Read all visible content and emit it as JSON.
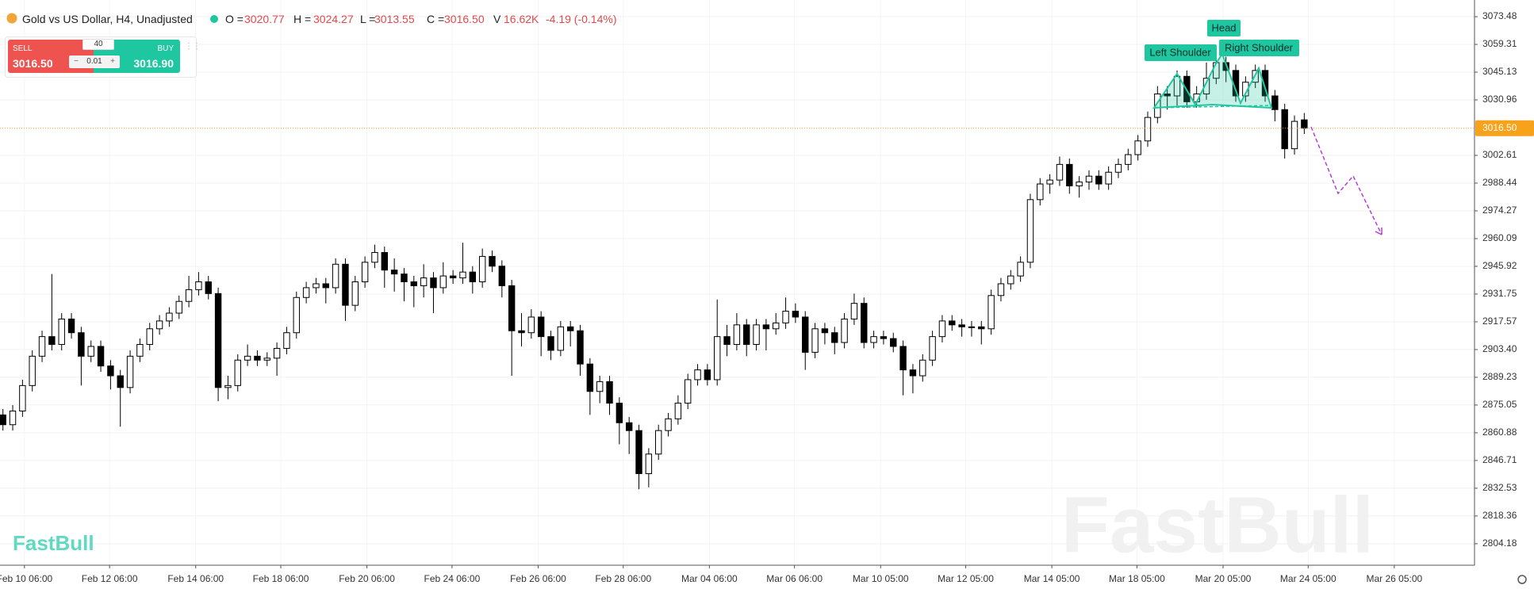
{
  "header": {
    "title": "Gold vs US Dollar, H4, Unadjusted",
    "open_label": "O =",
    "open": "3020.77",
    "high_label": "H =",
    "high": "3024.27",
    "low_label": "L =",
    "low": "3013.55",
    "close_label": "C =",
    "close": "3016.50",
    "volume_label": "V",
    "volume": "16.62K",
    "change": "-4.19 (-0.14%)"
  },
  "trade_widget": {
    "sell_label": "SELL",
    "sell_price": "3016.50",
    "buy_label": "BUY",
    "buy_price": "3016.90",
    "spread": "40",
    "minus": "−",
    "quantity": "0.01",
    "plus": "+"
  },
  "logo": "FastBull",
  "chart_data": {
    "type": "candlestick",
    "watermark": "FastBull",
    "annotations": {
      "left": "Left Shoulder",
      "head": "Head",
      "right": "Right Shoulder"
    },
    "up_color": "#ffffff",
    "down_color": "#000000",
    "edge_color": "#000000",
    "last_price": {
      "value": 3016.5,
      "label": "3016.50"
    },
    "last_price_color": "#f7a21b",
    "grid": true,
    "xlim": [
      -0.3,
      150.4
    ],
    "ylim": [
      2793.2,
      3082
    ],
    "xticks": [
      {
        "value": 2.2,
        "label": "Feb 10 06:00"
      },
      {
        "value": 10.9,
        "label": "Feb 12 06:00"
      },
      {
        "value": 19.7,
        "label": "Feb 14 06:00"
      },
      {
        "value": 28.4,
        "label": "Feb 18 06:00"
      },
      {
        "value": 37.2,
        "label": "Feb 20 06:00"
      },
      {
        "value": 45.9,
        "label": "Feb 24 06:00"
      },
      {
        "value": 54.7,
        "label": "Feb 26 06:00"
      },
      {
        "value": 63.4,
        "label": "Feb 28 06:00"
      },
      {
        "value": 72.2,
        "label": "Mar 04 06:00"
      },
      {
        "value": 80.9,
        "label": "Mar 06 06:00"
      },
      {
        "value": 89.7,
        "label": "Mar 10 05:00"
      },
      {
        "value": 98.4,
        "label": "Mar 12 05:00"
      },
      {
        "value": 107.2,
        "label": "Mar 14 05:00"
      },
      {
        "value": 115.9,
        "label": "Mar 18 05:00"
      },
      {
        "value": 124.7,
        "label": "Mar 20 05:00"
      },
      {
        "value": 133.4,
        "label": "Mar 24 05:00"
      },
      {
        "value": 142.2,
        "label": "Mar 26 05:00"
      }
    ],
    "yticks": [
      3073.48,
      3059.31,
      3045.13,
      3030.96,
      3002.61,
      2988.44,
      2974.27,
      2960.09,
      2945.92,
      2931.75,
      2917.57,
      {
        "value": 2903.4,
        "label": "2903.40"
      },
      2889.23,
      2875.05,
      2860.88,
      2846.71,
      2832.53,
      2818.36,
      2804.18
    ],
    "open": [
      2870,
      2865,
      2872,
      2885,
      2900,
      2910,
      2906,
      2919,
      2912,
      2900,
      2905,
      2895,
      2890,
      2884,
      2900,
      2906,
      2914,
      2918,
      2922,
      2928,
      2934,
      2938,
      2932,
      2884,
      2885,
      2898,
      2900,
      2898,
      2899,
      2904,
      2912,
      2930,
      2935,
      2937,
      2935,
      2947,
      2926,
      2938,
      2948,
      2953,
      2944,
      2942,
      2938,
      2936,
      2940,
      2935,
      2941,
      2940,
      2943,
      2938,
      2951,
      2946,
      2936,
      2913,
      2912,
      2920,
      2910,
      2903,
      2915,
      2913,
      2896,
      2882,
      2887,
      2876,
      2866,
      2862,
      2840,
      2850,
      2862,
      2868,
      2876,
      2888,
      2893,
      2888,
      2910,
      2906,
      2916,
      2906,
      2916,
      2914,
      2917,
      2923,
      2920,
      2902,
      2914,
      2912,
      2907,
      2919,
      2927,
      2907,
      2910,
      2909,
      2905,
      2893,
      2890,
      2898,
      2910,
      2918,
      2916,
      2915,
      2915,
      2914,
      2931,
      2937,
      2941,
      2948,
      2980,
      2988,
      2990,
      2998,
      2987,
      2989,
      2992,
      2988,
      2994,
      2998,
      3003,
      3010,
      3022,
      3034,
      3033,
      3043,
      3030,
      3034,
      3042,
      3050,
      3046,
      3033,
      3040,
      3046,
      3033,
      3026,
      3006,
      3020.77
    ],
    "high": [
      2873,
      2875,
      2888,
      2903,
      2913,
      2942,
      2922,
      2922,
      2915,
      2908,
      2908,
      2898,
      2893,
      2903,
      2909,
      2917,
      2921,
      2925,
      2931,
      2941,
      2943,
      2941,
      2935,
      2890,
      2901,
      2906,
      2903,
      2902,
      2907,
      2915,
      2933,
      2938,
      2940,
      2940,
      2950,
      2950,
      2941,
      2951,
      2957,
      2956,
      2950,
      2945,
      2941,
      2947,
      2943,
      2948,
      2944,
      2958,
      2946,
      2955,
      2954,
      2949,
      2939,
      2922,
      2924,
      2923,
      2913,
      2918,
      2918,
      2916,
      2899,
      2890,
      2890,
      2879,
      2869,
      2865,
      2853,
      2865,
      2871,
      2880,
      2891,
      2896,
      2896,
      2929,
      2916,
      2922,
      2919,
      2919,
      2919,
      2922,
      2930,
      2927,
      2923,
      2917,
      2917,
      2915,
      2922,
      2932,
      2930,
      2913,
      2913,
      2912,
      2908,
      2896,
      2901,
      2913,
      2921,
      2921,
      2919,
      2918,
      2918,
      2934,
      2940,
      2944,
      2951,
      2983,
      2991,
      2993,
      3002,
      3001,
      2992,
      2995,
      2995,
      2997,
      3001,
      3006,
      3013,
      3025,
      3038,
      3038,
      3046,
      3046,
      3038,
      3050,
      3057,
      3053,
      3049,
      3043,
      3049,
      3049,
      3036,
      3029,
      3023,
      3024.27
    ],
    "low": [
      2862,
      2862,
      2869,
      2882,
      2897,
      2903,
      2903,
      2909,
      2885,
      2897,
      2892,
      2883,
      2864,
      2881,
      2897,
      2903,
      2911,
      2915,
      2919,
      2925,
      2931,
      2929,
      2877,
      2878,
      2882,
      2895,
      2895,
      2895,
      2890,
      2901,
      2909,
      2927,
      2932,
      2927,
      2932,
      2918,
      2923,
      2935,
      2945,
      2935,
      2933,
      2928,
      2925,
      2930,
      2922,
      2932,
      2937,
      2937,
      2932,
      2935,
      2943,
      2930,
      2890,
      2905,
      2909,
      2900,
      2898,
      2900,
      2905,
      2890,
      2870,
      2876,
      2870,
      2855,
      2850,
      2832,
      2833,
      2847,
      2859,
      2865,
      2873,
      2885,
      2885,
      2885,
      2900,
      2903,
      2900,
      2903,
      2903,
      2911,
      2914,
      2917,
      2893,
      2899,
      2906,
      2901,
      2904,
      2916,
      2904,
      2904,
      2906,
      2902,
      2880,
      2881,
      2887,
      2895,
      2907,
      2913,
      2910,
      2910,
      2906,
      2911,
      2928,
      2934,
      2938,
      2945,
      2977,
      2983,
      2987,
      2983,
      2981,
      2985,
      2985,
      2985,
      2991,
      2995,
      3000,
      3007,
      3019,
      3026,
      3028,
      3027,
      3027,
      3031,
      3039,
      3040,
      3030,
      3030,
      3037,
      3030,
      3020,
      3001,
      3003,
      3013.55
    ],
    "close": [
      2865,
      2872,
      2885,
      2900,
      2910,
      2906,
      2919,
      2912,
      2900,
      2905,
      2895,
      2890,
      2884,
      2900,
      2906,
      2914,
      2918,
      2922,
      2928,
      2934,
      2938,
      2932,
      2884,
      2885,
      2898,
      2900,
      2898,
      2899,
      2904,
      2912,
      2930,
      2935,
      2937,
      2935,
      2947,
      2926,
      2938,
      2948,
      2953,
      2944,
      2942,
      2938,
      2936,
      2940,
      2935,
      2941,
      2940,
      2943,
      2938,
      2951,
      2946,
      2936,
      2913,
      2912,
      2920,
      2910,
      2903,
      2915,
      2913,
      2896,
      2882,
      2887,
      2876,
      2866,
      2862,
      2840,
      2850,
      2862,
      2868,
      2876,
      2888,
      2893,
      2888,
      2910,
      2906,
      2916,
      2906,
      2916,
      2914,
      2917,
      2923,
      2920,
      2902,
      2914,
      2912,
      2907,
      2919,
      2927,
      2907,
      2910,
      2909,
      2905,
      2893,
      2890,
      2898,
      2910,
      2918,
      2916,
      2915,
      2915,
      2914,
      2931,
      2937,
      2941,
      2948,
      2980,
      2988,
      2990,
      2998,
      2987,
      2989,
      2992,
      2988,
      2994,
      2998,
      3003,
      3010,
      3022,
      3034,
      3033,
      3043,
      3030,
      3034,
      3042,
      3050,
      3046,
      3033,
      3040,
      3046,
      3033,
      3026,
      3006,
      3020,
      3016.5
    ]
  }
}
